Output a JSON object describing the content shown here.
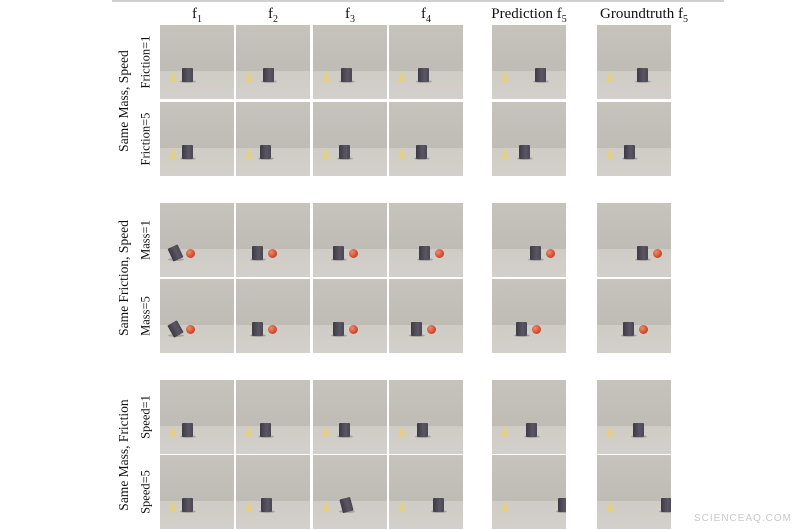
{
  "columns": [
    {
      "base": "f",
      "sub": "1"
    },
    {
      "base": "f",
      "sub": "2"
    },
    {
      "base": "f",
      "sub": "3"
    },
    {
      "base": "f",
      "sub": "4"
    },
    {
      "base": "Prediction f",
      "sub": "5"
    },
    {
      "base": "Groundtruth f",
      "sub": "5"
    }
  ],
  "groups": [
    {
      "label": "Same Mass, Speed",
      "rows": [
        {
          "label": "Friction=1"
        },
        {
          "label": "Friction=5"
        }
      ]
    },
    {
      "label": "Same Friction, Speed",
      "rows": [
        {
          "label": "Mass=1"
        },
        {
          "label": "Mass=5"
        }
      ]
    },
    {
      "label": "Same Mass, Friction",
      "rows": [
        {
          "label": "Speed=1"
        },
        {
          "label": "Speed=5"
        }
      ]
    }
  ],
  "objects": {
    "cone": "yellow cone",
    "cube": "dark gray cube",
    "ball": "red sphere"
  },
  "colors": {
    "background_wall": "#c6c3bd",
    "floor": "#d3d0cb",
    "cone": "#e2cf89",
    "cube": "#4a4652",
    "ball": "#c8432a"
  },
  "watermark": "SCIENCEAQ.COM"
}
